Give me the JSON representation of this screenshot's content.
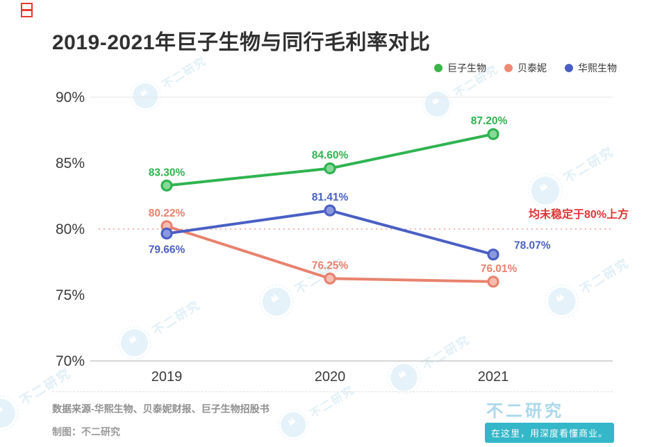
{
  "header": {
    "title": "2019-2021年巨子生物与同行毛利率对比"
  },
  "legend": [
    {
      "label": "巨子生物",
      "color": "#3cb54a"
    },
    {
      "label": "贝泰妮",
      "color": "#ee8a74"
    },
    {
      "label": "华熙生物",
      "color": "#4a5fc4"
    }
  ],
  "chart_data": {
    "type": "line",
    "title": "2019-2021年巨子生物与同行毛利率对比",
    "categories": [
      "2019",
      "2020",
      "2021"
    ],
    "ylim": [
      70,
      90
    ],
    "yticks": [
      "90%",
      "85%",
      "80%",
      "75%",
      "70%"
    ],
    "xlabel": "",
    "ylabel": "",
    "grid": false,
    "legend_position": "top-right",
    "reference_line": {
      "value": 80,
      "color": "#f29b9b",
      "annotation": "均未稳定于80%上方",
      "annotation_color": "#e03434"
    },
    "series": [
      {
        "name": "巨子生物",
        "color": "#2fb350",
        "marker_fill": "#86d996",
        "values": [
          83.3,
          84.6,
          87.2
        ],
        "labels": [
          "83.30%",
          "84.60%",
          "87.20%"
        ],
        "label_offsets": [
          [
            0,
            -14,
            "middle"
          ],
          [
            0,
            -14,
            "middle"
          ],
          [
            -6,
            -14,
            "middle"
          ]
        ]
      },
      {
        "name": "贝泰妮",
        "color": "#e8826e",
        "marker_fill": "#f5beb2",
        "values": [
          80.22,
          76.25,
          76.01
        ],
        "labels": [
          "80.22%",
          "76.25%",
          "76.01%"
        ],
        "label_offsets": [
          [
            0,
            -14,
            "middle"
          ],
          [
            0,
            -14,
            "middle"
          ],
          [
            8,
            -14,
            "middle"
          ]
        ]
      },
      {
        "name": "华熙生物",
        "color": "#4a5fc4",
        "marker_fill": "#8b9ade",
        "values": [
          79.66,
          81.41,
          78.07
        ],
        "labels": [
          "79.66%",
          "81.41%",
          "78.07%"
        ],
        "label_offsets": [
          [
            0,
            28,
            "middle"
          ],
          [
            0,
            -14,
            "middle"
          ],
          [
            30,
            -8,
            "start"
          ]
        ]
      }
    ]
  },
  "footer": {
    "source": "数据来源-华熙生物、贝泰妮财报、巨子生物招股书",
    "credit": "制图：不二研究"
  },
  "brand": {
    "name": "不二研究",
    "tagline": "在这里，用深度看懂商业。"
  },
  "watermark_text": "不二研究",
  "brand_logo_glyph": "❝"
}
